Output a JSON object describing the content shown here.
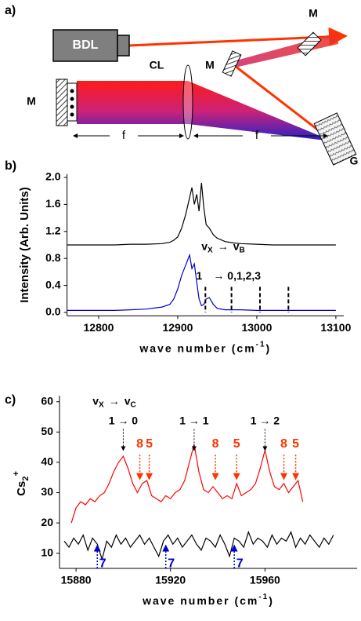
{
  "diagram": {
    "label": "a)",
    "source": "BDL",
    "lens": "CL",
    "mirror_top": "M",
    "mirror_mid": "M",
    "mirror_left": "M",
    "focal_left": "f",
    "focal_right": "f",
    "grating": "G"
  },
  "chart_data": [
    {
      "type": "line",
      "panel_label": "b)",
      "y_label": "Intensity (Arb. Units)",
      "x_label": [
        "wave number (cm",
        "-1",
        ")"
      ],
      "x": [
        12760,
        12780,
        12800,
        12820,
        12840,
        12860,
        12880,
        12890,
        12895,
        12900,
        12905,
        12910,
        12915,
        12918,
        12921,
        12924,
        12927,
        12930,
        12933,
        12936,
        12940,
        12945,
        12950,
        12960,
        12970,
        12980,
        13000,
        13020,
        13040,
        13060,
        13080,
        13100
      ],
      "series": [
        {
          "color": "#000000",
          "values": [
            1.0,
            1.0,
            1.0,
            1.0,
            1.01,
            1.01,
            1.02,
            1.04,
            1.07,
            1.12,
            1.25,
            1.45,
            1.7,
            1.85,
            1.6,
            1.75,
            1.5,
            1.92,
            1.55,
            1.3,
            1.25,
            1.15,
            1.1,
            1.05,
            1.03,
            1.02,
            1.01,
            1.0,
            1.0,
            1.0,
            1.0,
            1.0
          ]
        },
        {
          "color": "#0000cc",
          "values": [
            0.03,
            0.03,
            0.03,
            0.03,
            0.04,
            0.05,
            0.08,
            0.12,
            0.2,
            0.35,
            0.55,
            0.7,
            0.85,
            0.65,
            0.72,
            0.45,
            0.2,
            0.1,
            0.12,
            0.2,
            0.22,
            0.12,
            0.06,
            0.04,
            0.04,
            0.04,
            0.03,
            0.03,
            0.03,
            0.03,
            0.03,
            0.03
          ]
        }
      ],
      "xlim": [
        12760,
        13110
      ],
      "ylim": [
        -0.05,
        2.05
      ],
      "xticks": [
        12800,
        12900,
        13000,
        13100
      ],
      "yticks": [
        {
          "value": 0,
          "label": "0.0"
        },
        0.4,
        0.8,
        1.2,
        1.6,
        {
          "value": 2,
          "label": "2.0"
        }
      ],
      "annotation": [
        "v",
        "X",
        "→",
        "v",
        "B"
      ],
      "assignment": {
        "lower": "1",
        "upper": "→ 0,1,2,3"
      },
      "markers": [
        12935,
        12968,
        13004,
        13040
      ]
    },
    {
      "type": "line",
      "panel_label": "c)",
      "y_label": [
        "Cs",
        "2",
        "+"
      ],
      "x_label": [
        "wave number (cm",
        "-1",
        ")"
      ],
      "series": [
        {
          "color": "#ff0000",
          "x": [
            15878,
            15880,
            15882,
            15884,
            15886,
            15888,
            15890,
            15892,
            15894,
            15896,
            15898,
            15900,
            15902,
            15904,
            15906,
            15908,
            15910,
            15912,
            15914,
            15916,
            15918,
            15920,
            15922,
            15924,
            15926,
            15928,
            15930,
            15932,
            15934,
            15936,
            15938,
            15940,
            15942,
            15944,
            15946,
            15948,
            15950,
            15952,
            15954,
            15956,
            15958,
            15960,
            15962,
            15964,
            15966,
            15968,
            15970,
            15972,
            15974,
            15976
          ],
          "values": [
            20,
            25,
            27,
            26,
            28,
            27,
            29,
            30,
            33,
            37,
            40,
            42,
            38,
            33,
            30,
            33,
            34,
            29,
            28,
            27,
            29,
            28,
            30,
            31,
            34,
            40,
            46,
            37,
            31,
            30,
            32,
            30,
            28,
            29,
            28,
            33,
            29,
            30,
            31,
            33,
            38,
            44,
            37,
            32,
            31,
            33,
            30,
            32,
            34,
            27
          ]
        },
        {
          "color": "#000000",
          "x": [
            15875,
            15877,
            15879,
            15881,
            15883,
            15885,
            15887,
            15889,
            15891,
            15893,
            15895,
            15897,
            15899,
            15901,
            15903,
            15905,
            15907,
            15909,
            15911,
            15913,
            15915,
            15917,
            15919,
            15921,
            15923,
            15925,
            15927,
            15929,
            15931,
            15933,
            15935,
            15937,
            15939,
            15941,
            15943,
            15945,
            15947,
            15949,
            15951,
            15953,
            15955,
            15957,
            15959,
            15961,
            15963,
            15965,
            15967,
            15969,
            15971,
            15973,
            15975,
            15977,
            15979,
            15981,
            15983,
            15985,
            15987,
            15989
          ],
          "values": [
            14,
            12,
            15,
            13,
            16,
            11,
            15,
            13,
            8,
            14,
            12,
            16,
            13,
            15,
            12,
            14,
            16,
            13,
            15,
            12,
            9,
            14,
            16,
            13,
            15,
            12,
            14,
            16,
            13,
            11,
            15,
            14,
            12,
            16,
            13,
            9,
            15,
            14,
            12,
            17,
            13,
            15,
            14,
            12,
            16,
            13,
            15,
            14,
            17,
            12,
            15,
            13,
            16,
            14,
            12,
            15,
            13,
            16
          ]
        }
      ],
      "xlim": [
        15873,
        15999
      ],
      "ylim": [
        5,
        62
      ],
      "xticks": [
        15880,
        15920,
        15960
      ],
      "yticks": [
        10,
        20,
        30,
        40,
        50,
        60
      ],
      "annotation": [
        "v",
        "X",
        "→",
        "v",
        "C"
      ],
      "transitions": [
        {
          "label": "1 → 0",
          "x": 15900
        },
        {
          "label": "1 → 1",
          "x": 15930
        },
        {
          "label": "1 → 2",
          "x": 15960
        }
      ],
      "red_markers": [
        {
          "label": "8",
          "x": 15907
        },
        {
          "label": "5",
          "x": 15911
        },
        {
          "label": "8",
          "x": 15939
        },
        {
          "label": "5",
          "x": 15948
        },
        {
          "label": "8",
          "x": 15968
        },
        {
          "label": "5",
          "x": 15973
        }
      ],
      "blue_markers": [
        {
          "label": "7",
          "x": 15889
        },
        {
          "label": "7",
          "x": 15918
        },
        {
          "label": "7",
          "x": 15947
        }
      ]
    }
  ]
}
